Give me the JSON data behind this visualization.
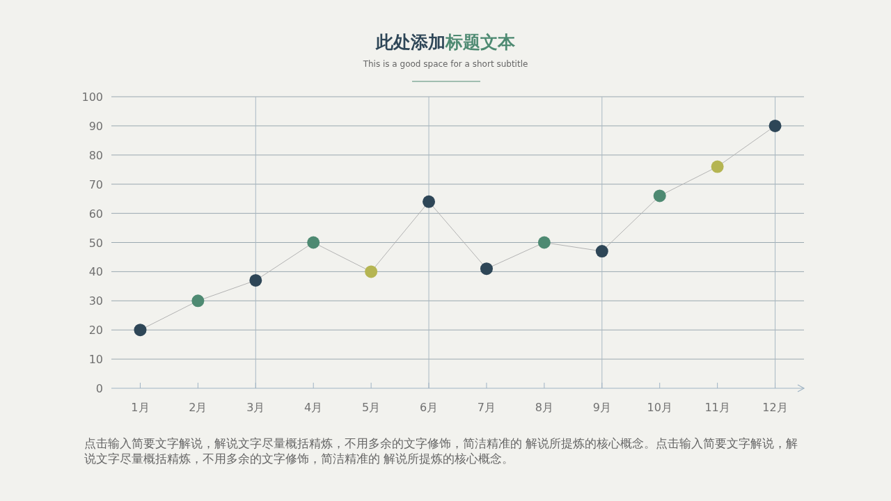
{
  "chart_data": {
    "type": "line",
    "title": "此处添加标题文本",
    "subtitle": "This is a good space for a short subtitle",
    "categories": [
      "1月",
      "2月",
      "3月",
      "4月",
      "5月",
      "6月",
      "7月",
      "8月",
      "9月",
      "10月",
      "11月",
      "12月"
    ],
    "series": [
      {
        "color": "#b3b3b3",
        "colors": [
          "#2e4657",
          "#4e8a72",
          "#2e4657",
          "#4e8a72",
          "#b5b552",
          "#2e4657",
          "#2e4657",
          "#4e8a72",
          "#2e4657",
          "#4e8a72",
          "#b5b552",
          "#2e4657"
        ],
        "values": [
          20,
          30,
          37,
          50,
          40,
          64,
          41,
          50,
          47,
          66,
          76,
          90
        ]
      }
    ],
    "ylim": [
      0,
      100
    ],
    "yticks": [
      0,
      10,
      20,
      30,
      40,
      50,
      60,
      70,
      80,
      90,
      100
    ],
    "grid": "y",
    "marker": "circle",
    "line_style": "solid",
    "ref_lines": [
      {
        "axis": "x",
        "value": "3月",
        "color": "#a9b8c4"
      },
      {
        "axis": "x",
        "value": "6月",
        "color": "#a9b8c4"
      },
      {
        "axis": "x",
        "value": "9月",
        "color": "#a9b8c4"
      },
      {
        "axis": "x",
        "value": "12月",
        "color": "#a9b8c4"
      }
    ],
    "annotations": [
      "点击输入简要文字解说，解说文字尽量概括精炼，不用多余的文字修饰，简洁精准的 解说所提炼的核心概念。点击输入简要文字解说，解说文字尽量概括精炼，不用多余的文字修饰，简洁精准的 解说所提炼的核心概念。"
    ]
  }
}
